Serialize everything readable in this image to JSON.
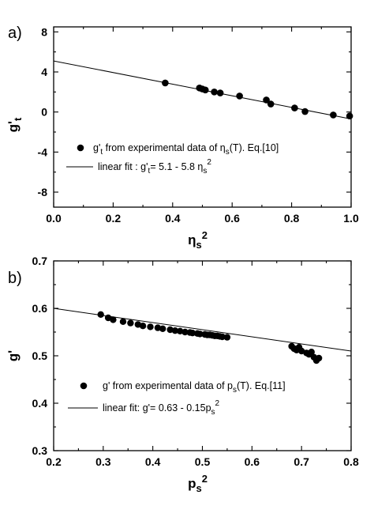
{
  "chart_data": [
    {
      "type": "scatter",
      "panel_label": "a)",
      "xlabel": "η_s^2",
      "ylabel": "g'_t",
      "xlim": [
        0.0,
        1.0
      ],
      "ylim": [
        -9.5,
        8.5
      ],
      "xticks": [
        0.0,
        0.2,
        0.4,
        0.6,
        0.8,
        1.0
      ],
      "xtick_labels": [
        "0.0",
        "0.2",
        "0.4",
        "0.6",
        "0.8",
        "1.0"
      ],
      "yticks": [
        -8,
        -4,
        0,
        4,
        8
      ],
      "ytick_labels": [
        "-8",
        "-4",
        "0",
        "4",
        "8"
      ],
      "grid": false,
      "legend_position": "lower-left",
      "legend": {
        "points_pre": "g'",
        "points_sub": "t",
        "points_mid": " from experimental data of  η",
        "points_sub2": "s",
        "points_post": "(T).  Eq.[10]",
        "fit_pre": "linear fit : g'",
        "fit_sub": "t",
        "fit_mid": "= 5.1 - 5.8 η",
        "fit_sub2": "s",
        "fit_sup": "2"
      },
      "series": [
        {
          "kind": "points",
          "x": [
            0.375,
            0.49,
            0.5,
            0.51,
            0.54,
            0.56,
            0.625,
            0.715,
            0.73,
            0.81,
            0.845,
            0.94,
            0.995
          ],
          "y": [
            2.9,
            2.4,
            2.3,
            2.2,
            2.0,
            1.9,
            1.6,
            1.2,
            0.8,
            0.4,
            0.05,
            -0.3,
            -0.4
          ]
        },
        {
          "kind": "line",
          "intercept": 5.1,
          "slope": -5.8
        }
      ]
    },
    {
      "type": "scatter",
      "panel_label": "b)",
      "xlabel": "p_s^2",
      "ylabel": "g'",
      "xlim": [
        0.2,
        0.8
      ],
      "ylim": [
        0.3,
        0.7
      ],
      "xticks": [
        0.2,
        0.3,
        0.4,
        0.5,
        0.6,
        0.7,
        0.8
      ],
      "xtick_labels": [
        "0.2",
        "0.3",
        "0.4",
        "0.5",
        "0.6",
        "0.7",
        "0.8"
      ],
      "yticks": [
        0.3,
        0.4,
        0.5,
        0.6,
        0.7
      ],
      "ytick_labels": [
        "0.3",
        "0.4",
        "0.5",
        "0.6",
        "0.7"
      ],
      "grid": false,
      "legend_position": "lower-left",
      "legend": {
        "points_pre": "g' from experimental data of p",
        "points_sub": "s",
        "points_post": "(T).  Eq.[11]",
        "fit_pre": "linear fit: g'= 0.63 - 0.15p",
        "fit_sub": "s",
        "fit_sup": "2"
      },
      "series": [
        {
          "kind": "points",
          "x": [
            0.295,
            0.31,
            0.32,
            0.34,
            0.355,
            0.37,
            0.38,
            0.395,
            0.41,
            0.42,
            0.435,
            0.445,
            0.455,
            0.465,
            0.475,
            0.48,
            0.49,
            0.495,
            0.505,
            0.51,
            0.515,
            0.52,
            0.525,
            0.53,
            0.535,
            0.54,
            0.55,
            0.68,
            0.685,
            0.69,
            0.695,
            0.7,
            0.71,
            0.715,
            0.72,
            0.725,
            0.73,
            0.735
          ],
          "y": [
            0.587,
            0.58,
            0.576,
            0.572,
            0.569,
            0.566,
            0.563,
            0.561,
            0.559,
            0.557,
            0.555,
            0.553,
            0.552,
            0.55,
            0.549,
            0.548,
            0.547,
            0.546,
            0.545,
            0.544,
            0.544,
            0.543,
            0.542,
            0.542,
            0.541,
            0.54,
            0.539,
            0.52,
            0.515,
            0.512,
            0.518,
            0.51,
            0.506,
            0.503,
            0.508,
            0.497,
            0.49,
            0.495
          ]
        },
        {
          "kind": "line",
          "intercept": 0.63,
          "slope": -0.15
        }
      ]
    }
  ]
}
